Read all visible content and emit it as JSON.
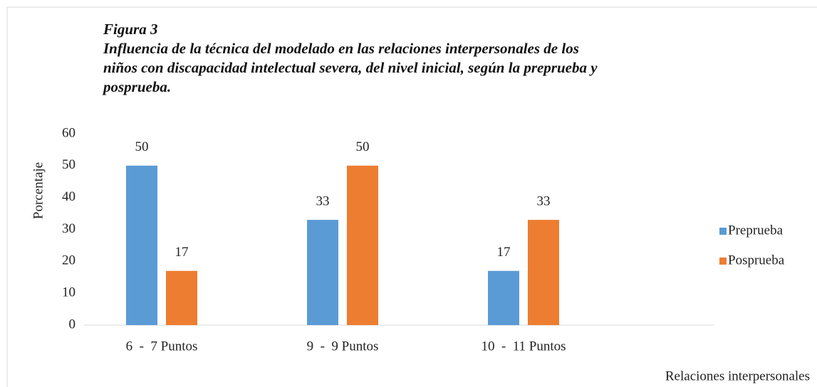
{
  "chart_data": {
    "type": "bar",
    "title": "Figura 3",
    "subtitle": "Influencia de la técnica del modelado en las relaciones interpersonales de los niños con discapacidad intelectual severa, del nivel inicial, según la preprueba y posprueba.",
    "x_label": "Relaciones interpersonales",
    "y_label": "Porcentaje",
    "categories": [
      "6  -  7 Puntos",
      "9  -  9 Puntos",
      "10  -  11 Puntos"
    ],
    "series": [
      {
        "name": "Preprueba",
        "color": "#5b9bd5",
        "values": [
          50,
          33,
          17
        ]
      },
      {
        "name": "Posprueba",
        "color": "#ed7d31",
        "values": [
          17,
          50,
          33
        ]
      }
    ],
    "ylim": [
      0,
      60
    ],
    "yticks": [
      0,
      10,
      20,
      30,
      40,
      50,
      60
    ],
    "grid": false,
    "legend": "right"
  }
}
